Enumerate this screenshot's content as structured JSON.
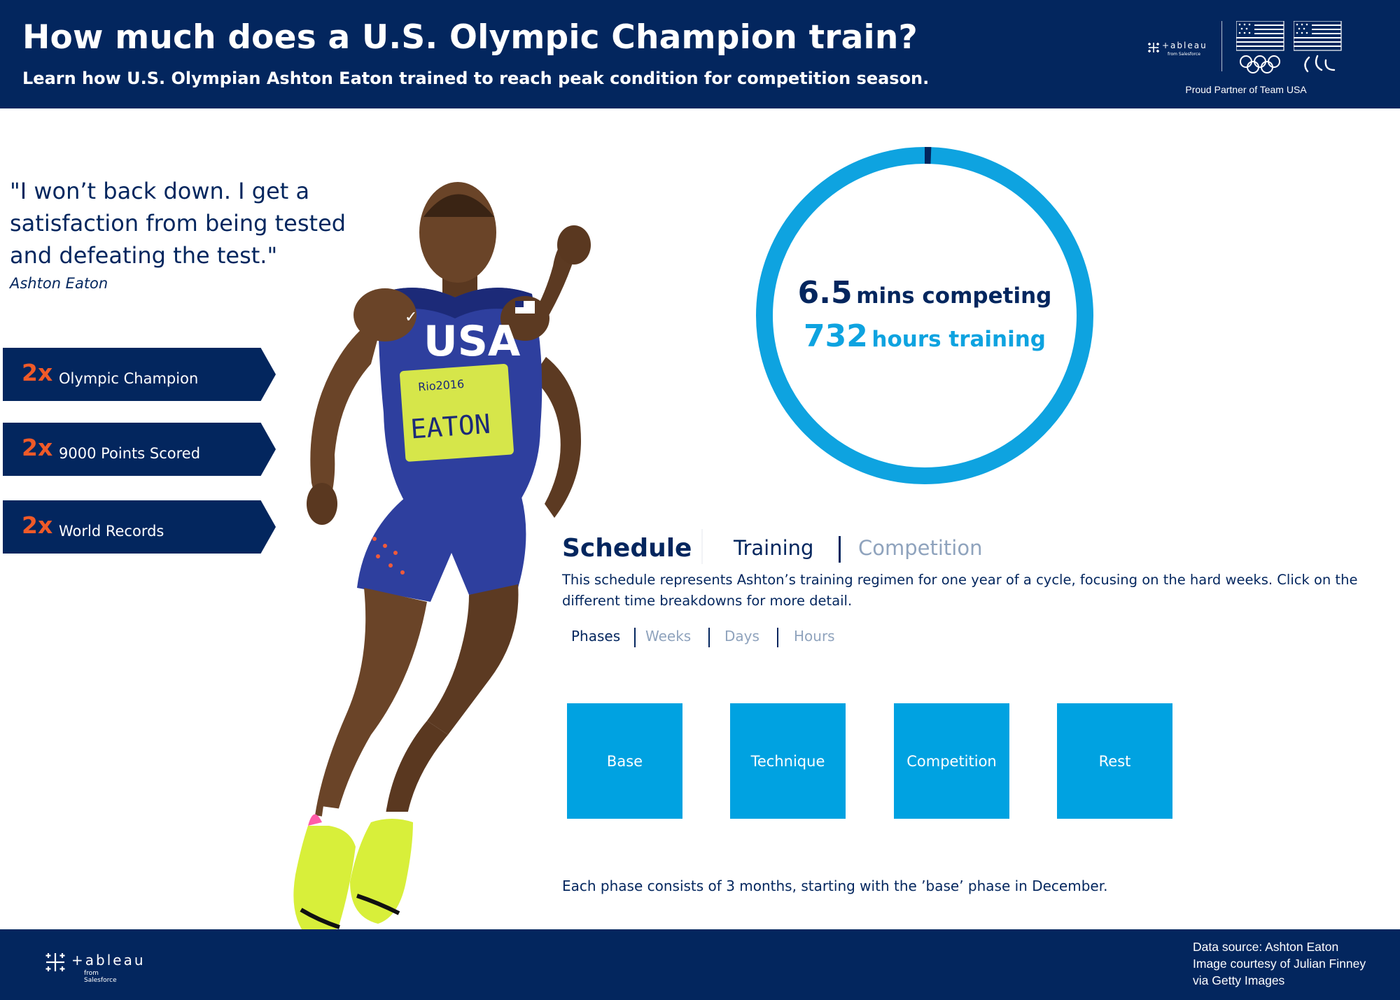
{
  "header": {
    "title": "How much does a U.S. Olympic Champion train?",
    "subtitle": "Learn how U.S. Olympian Ashton Eaton trained to reach peak condition for competition season.",
    "partner_text": "Proud Partner of Team USA",
    "tableau_wordmark": "+ableau",
    "tableau_tagline": "from Salesforce"
  },
  "quote": {
    "text": "\"I won’t back down. I get a satisfaction from being tested and defeating the test.\"",
    "author": "Ashton Eaton"
  },
  "achievements": [
    {
      "multiplier": "2x",
      "label": "Olympic Champion"
    },
    {
      "multiplier": "2x",
      "label": "9000 Points Scored"
    },
    {
      "multiplier": "2x",
      "label": "World Records"
    }
  ],
  "athlete_jersey": {
    "team": "USA",
    "event": "Rio2016",
    "name": "EATON"
  },
  "donut": {
    "competing_value": "6.5",
    "competing_label": "mins competing",
    "training_value": "732",
    "training_label": "hours training",
    "competing_fraction": 0.0062,
    "colors": {
      "training": "#0ea3e0",
      "competing": "#03265e"
    }
  },
  "schedule": {
    "title": "Schedule",
    "tabs": [
      {
        "label": "Training",
        "active": true
      },
      {
        "label": "Competition",
        "active": false
      }
    ],
    "description": "This schedule represents Ashton’s training regimen for one year of a cycle, focusing on the hard weeks. Click on the different time breakdowns for more detail.",
    "time_tabs": [
      {
        "label": "Phases",
        "active": true
      },
      {
        "label": "Weeks",
        "active": false
      },
      {
        "label": "Days",
        "active": false
      },
      {
        "label": "Hours",
        "active": false
      }
    ],
    "phases": [
      "Base",
      "Technique",
      "Competition",
      "Rest"
    ],
    "note": "Each phase consists of 3 months, starting with the ’base’ phase in December."
  },
  "footer": {
    "source_lines": [
      "Data source: Ashton Eaton",
      "Image courtesy of Julian Finney",
      "via Getty Images"
    ],
    "tableau_wordmark": "+ableau",
    "tableau_tagline": "from Salesforce"
  },
  "colors": {
    "navy": "#03265e",
    "accent_orange": "#f05a28",
    "phase_blue": "#00a2e1",
    "inactive_tab": "#8fa3bd"
  },
  "icons": [
    "tableau-logo-icon",
    "us-flag-icon",
    "olympic-rings-icon",
    "paralympic-agitos-icon"
  ]
}
